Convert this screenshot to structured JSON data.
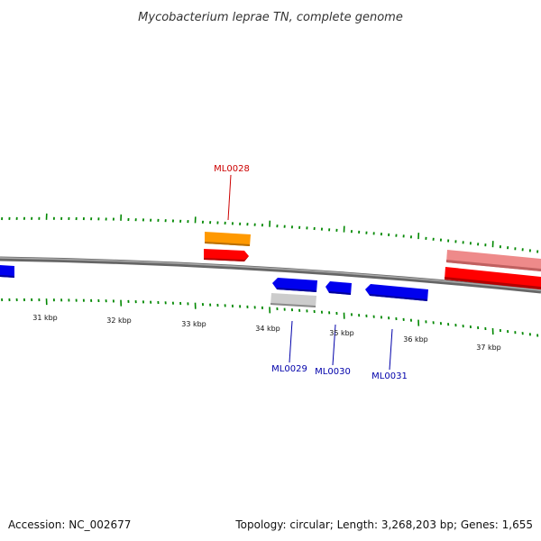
{
  "title": "Mycobacterium leprae TN, complete genome",
  "footer": {
    "accession": "Accession: NC_002677",
    "summary": "Topology: circular; Length: 3,268,203 bp; Genes: 1,655"
  },
  "scale_labels": [
    "31 kbp",
    "32 kbp",
    "33 kbp",
    "34 kbp",
    "35 kbp",
    "36 kbp",
    "37 kbp"
  ],
  "gene_labels": [
    {
      "id": "ml0028",
      "text": "ML0028",
      "color": "#cc0000"
    },
    {
      "id": "ml0029",
      "text": "ML0029",
      "color": "#0000aa"
    },
    {
      "id": "ml0030",
      "text": "ML0030",
      "color": "#0000aa"
    },
    {
      "id": "ml0031",
      "text": "ML0031",
      "color": "#0000aa"
    }
  ],
  "colors": {
    "backbone": "#888888",
    "tick": "#008800",
    "forward_gene": "#ff0000",
    "forward_gene_light": "#ee8a8a",
    "reverse_gene": "#0000ee",
    "orange_feature": "#ff9900",
    "gray_feature": "#cccccc"
  }
}
